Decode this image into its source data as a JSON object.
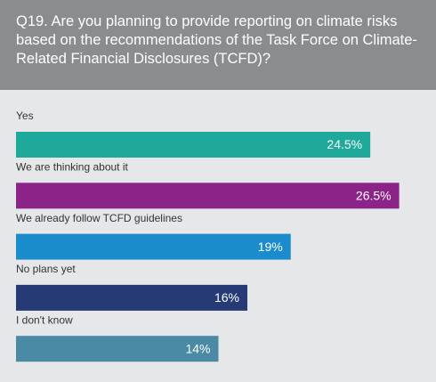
{
  "chart_data": {
    "type": "bar",
    "orientation": "horizontal",
    "title": "Q19. Are you planning to provide reporting on climate risks based on the recommendations of the Task Force on Climate-Related Financial Disclosures (TCFD)?",
    "categories": [
      "Yes",
      "We are thinking about it",
      "We already follow TCFD guidelines",
      "No plans yet",
      "I don't know"
    ],
    "values": [
      24.5,
      26.5,
      19,
      16,
      14
    ],
    "value_labels": [
      "24.5%",
      "26.5%",
      "19%",
      "16%",
      "14%"
    ],
    "colors": [
      "#1fa99a",
      "#8b2388",
      "#1b8ccb",
      "#263a75",
      "#4b8aa5"
    ]
  }
}
